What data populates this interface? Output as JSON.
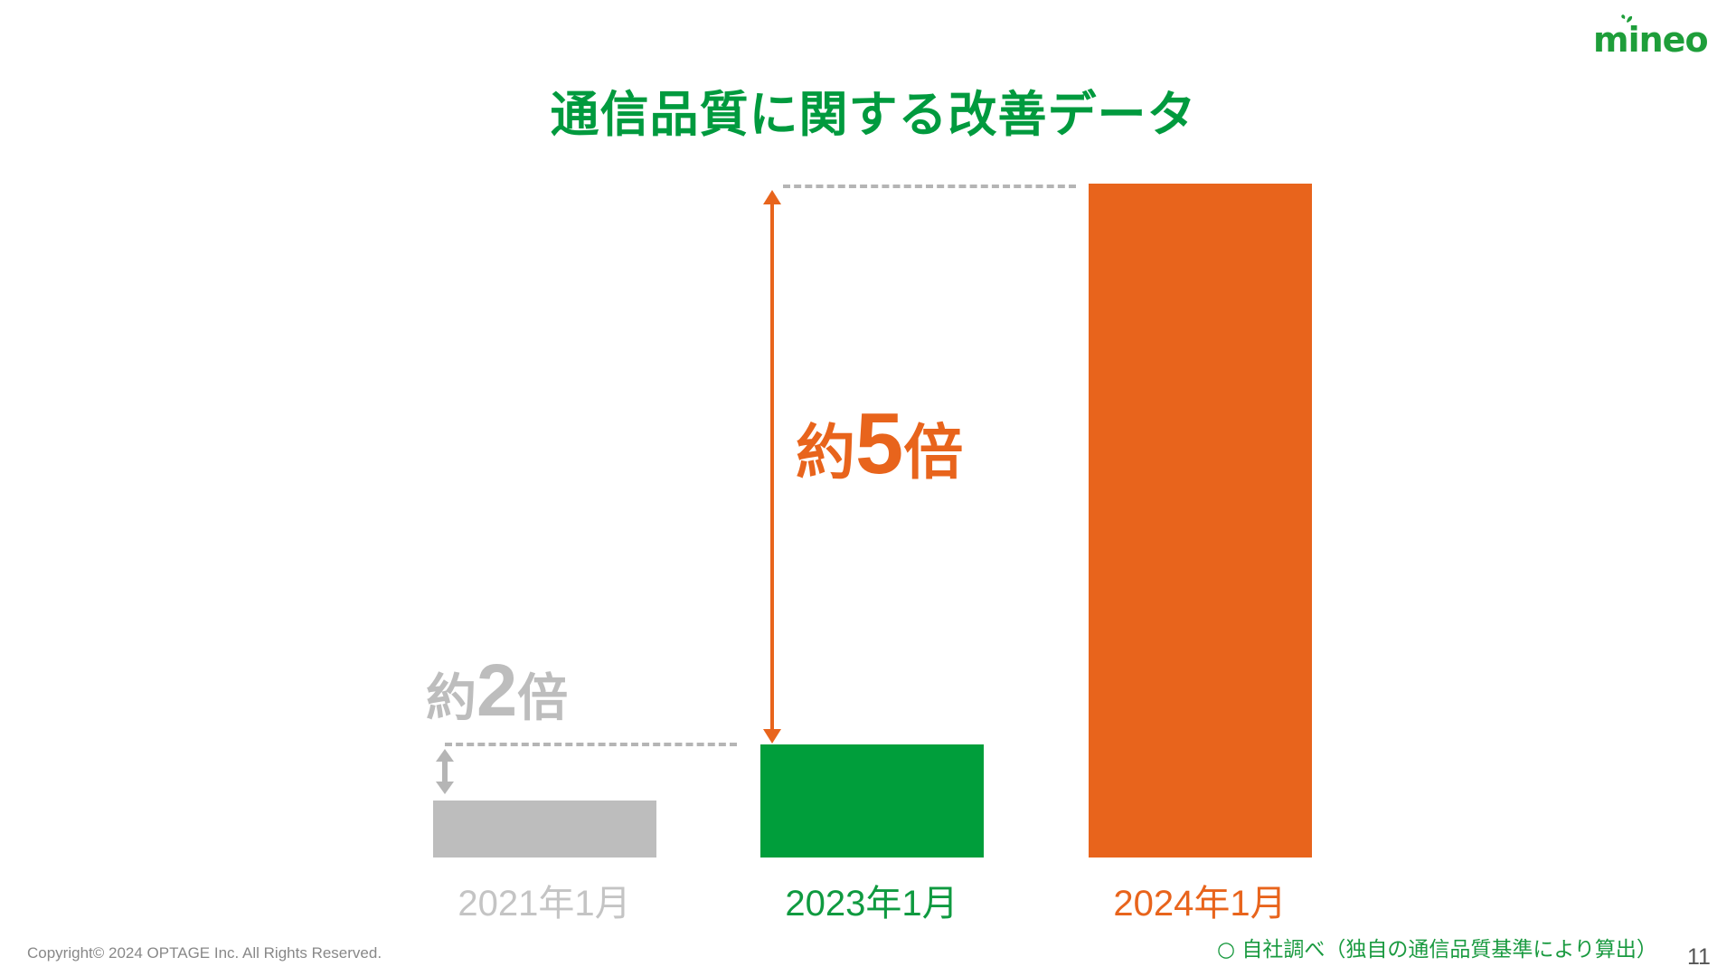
{
  "title": "通信品質に関する改善データ",
  "logo_text": "mineo",
  "chart_data": {
    "type": "bar",
    "title": "通信品質に関する改善データ",
    "categories": [
      "2021年1月",
      "2023年1月",
      "2024年1月"
    ],
    "values": [
      1,
      2,
      11.9
    ],
    "value_unit": "relative (2021年1月 = 1)",
    "colors": [
      "#bdbdbd",
      "#009e3b",
      "#e8641c"
    ],
    "label_colors": [
      "#c4c4c4",
      "#0f9a40",
      "#e8641c"
    ],
    "annotations": [
      {
        "text_prefix": "約",
        "number": "2",
        "text_suffix": "倍",
        "from": "2021年1月",
        "to": "2023年1月",
        "color": "#bdbdbd"
      },
      {
        "text_prefix": "約",
        "number": "5",
        "text_suffix": "倍",
        "from": "2023年1月",
        "to": "2024年1月",
        "color": "#e8641c"
      }
    ],
    "xlabel": "",
    "ylabel": "",
    "grid": false,
    "axes_visible": false
  },
  "footer": {
    "copyright": "Copyright© 2024 OPTAGE Inc. All Rights Reserved.",
    "footnote": "○ 自社調べ（独自の通信品質基準により算出）",
    "page_number": "11"
  }
}
